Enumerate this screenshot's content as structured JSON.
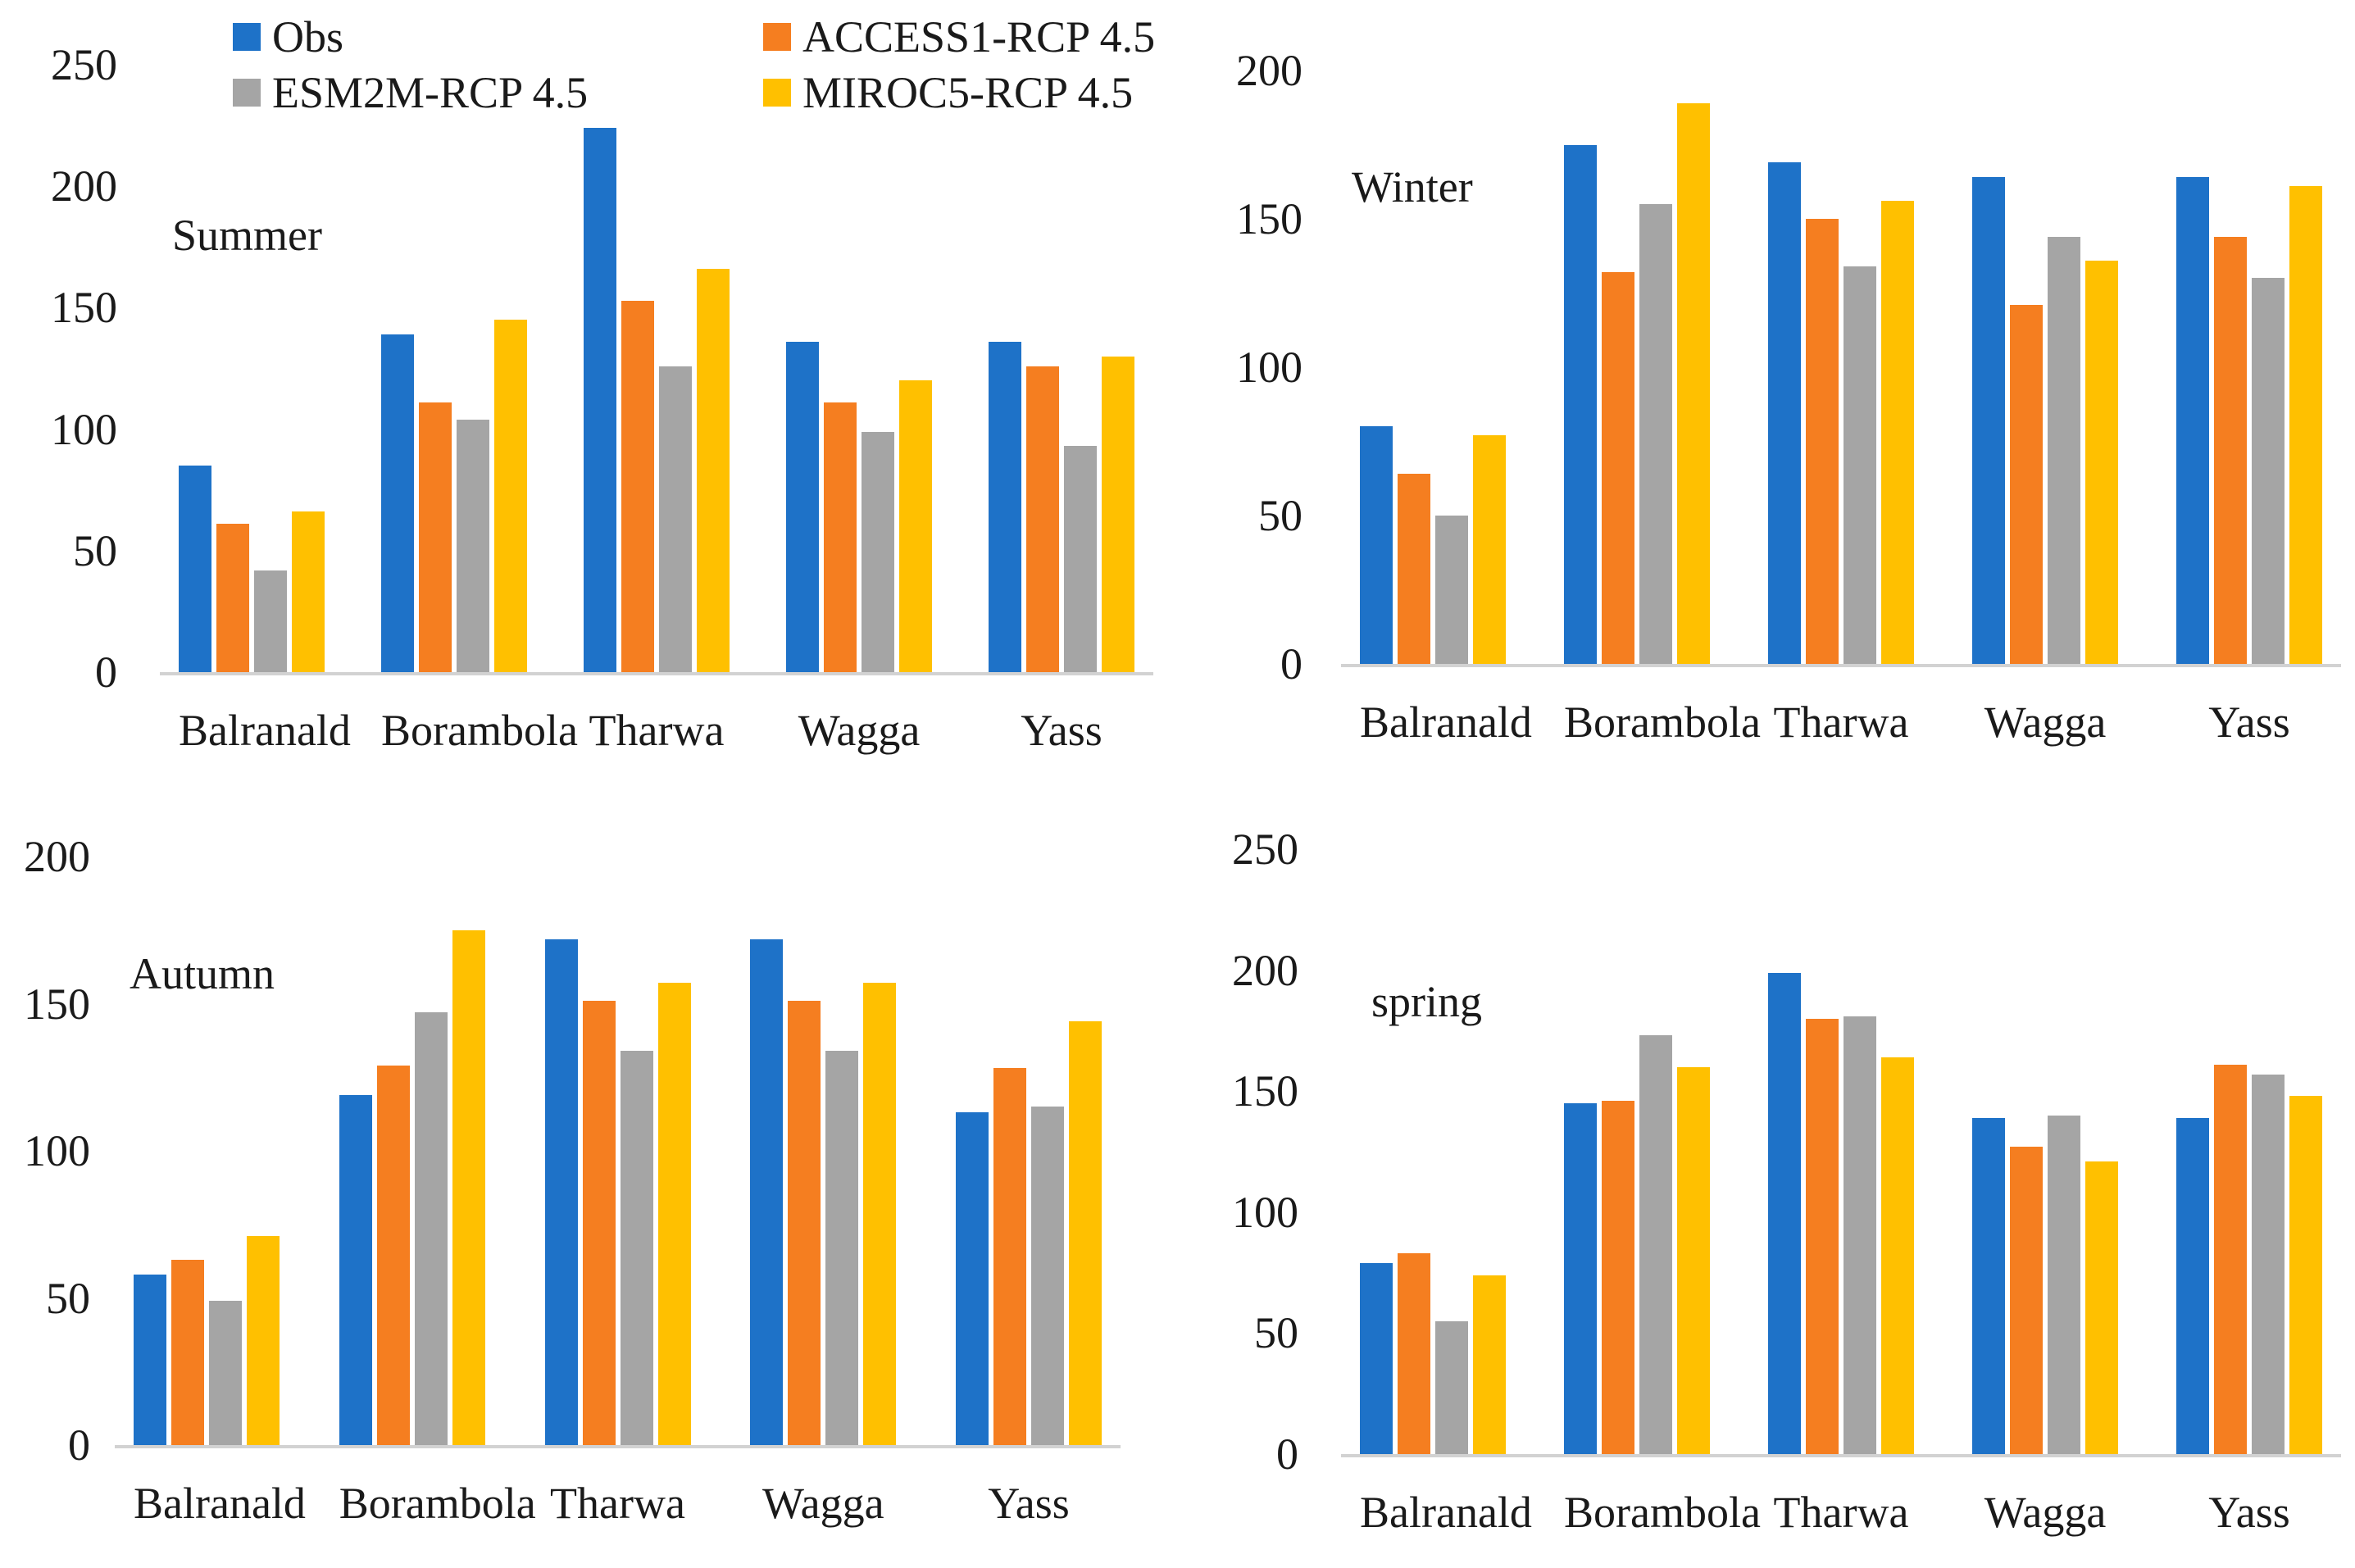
{
  "colors": {
    "obs": "#1e72c8",
    "access1": "#f57e20",
    "esm2m": "#a5a5a5",
    "miroc5": "#ffc000",
    "axis_line": "#d2d2d2",
    "text": "#1a1a1a"
  },
  "legend": {
    "position": "top-of-summer-chart, two columns",
    "items": [
      {
        "label": "Obs",
        "color": "#1e72c8"
      },
      {
        "label": "ACCESS1-RCP 4.5",
        "color": "#f57e20"
      },
      {
        "label": "ESM2M-RCP 4.5",
        "color": "#a5a5a5"
      },
      {
        "label": "MIROC5-RCP 4.5",
        "color": "#ffc000"
      }
    ]
  },
  "chart_data": [
    {
      "type": "bar",
      "title": "Summer",
      "categories": [
        "Balranald",
        "Borambola",
        "Tharwa",
        "Wagga",
        "Yass"
      ],
      "series": [
        {
          "name": "Obs",
          "values": [
            85,
            139,
            224,
            136,
            136
          ]
        },
        {
          "name": "ACCESS1-RCP 4.5",
          "values": [
            61,
            111,
            153,
            111,
            126
          ]
        },
        {
          "name": "ESM2M-RCP 4.5",
          "values": [
            42,
            104,
            126,
            99,
            93
          ]
        },
        {
          "name": "MIROC5-RCP 4.5",
          "values": [
            66,
            145,
            166,
            120,
            130
          ]
        }
      ],
      "xlabel": "",
      "ylabel": "",
      "ylim": [
        0,
        250
      ],
      "yticks": [
        0,
        50,
        100,
        150,
        200,
        250
      ],
      "grid": false
    },
    {
      "type": "bar",
      "title": "Winter",
      "categories": [
        "Balranald",
        "Borambola",
        "Tharwa",
        "Wagga",
        "Yass"
      ],
      "series": [
        {
          "name": "Obs",
          "values": [
            80,
            175,
            169,
            164,
            164
          ]
        },
        {
          "name": "ACCESS1-RCP 4.5",
          "values": [
            64,
            132,
            150,
            121,
            144
          ]
        },
        {
          "name": "ESM2M-RCP 4.5",
          "values": [
            50,
            155,
            134,
            144,
            130
          ]
        },
        {
          "name": "MIROC5-RCP 4.5",
          "values": [
            77,
            189,
            156,
            136,
            161
          ]
        }
      ],
      "xlabel": "",
      "ylabel": "",
      "ylim": [
        0,
        200
      ],
      "yticks": [
        0,
        50,
        100,
        150,
        200
      ],
      "grid": false
    },
    {
      "type": "bar",
      "title": "Autumn",
      "categories": [
        "Balranald",
        "Borambola",
        "Tharwa",
        "Wagga",
        "Yass"
      ],
      "series": [
        {
          "name": "Obs",
          "values": [
            58,
            119,
            172,
            172,
            113
          ]
        },
        {
          "name": "ACCESS1-RCP 4.5",
          "values": [
            63,
            129,
            151,
            151,
            128
          ]
        },
        {
          "name": "ESM2M-RCP 4.5",
          "values": [
            49,
            147,
            134,
            134,
            115
          ]
        },
        {
          "name": "MIROC5-RCP 4.5",
          "values": [
            71,
            175,
            157,
            157,
            144
          ]
        }
      ],
      "xlabel": "",
      "ylabel": "",
      "ylim": [
        0,
        200
      ],
      "yticks": [
        0,
        50,
        100,
        150,
        200
      ],
      "grid": false
    },
    {
      "type": "bar",
      "title": "spring",
      "categories": [
        "Balranald",
        "Borambola",
        "Tharwa",
        "Wagga",
        "Yass"
      ],
      "series": [
        {
          "name": "Obs",
          "values": [
            79,
            145,
            199,
            139,
            139
          ]
        },
        {
          "name": "ACCESS1-RCP 4.5",
          "values": [
            83,
            146,
            180,
            127,
            161
          ]
        },
        {
          "name": "ESM2M-RCP 4.5",
          "values": [
            55,
            173,
            181,
            140,
            157
          ]
        },
        {
          "name": "MIROC5-RCP 4.5",
          "values": [
            74,
            160,
            164,
            121,
            148
          ]
        }
      ],
      "xlabel": "",
      "ylabel": "",
      "ylim": [
        0,
        250
      ],
      "yticks": [
        0,
        50,
        100,
        150,
        200,
        250
      ],
      "grid": false
    }
  ]
}
